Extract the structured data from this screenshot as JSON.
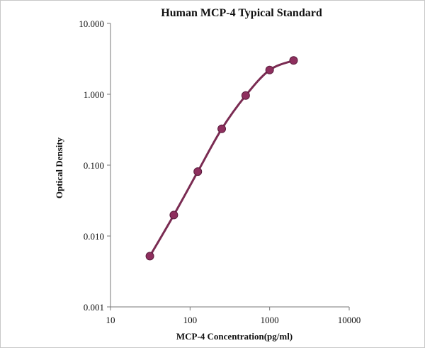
{
  "chart_data": {
    "type": "line",
    "title": "Human  MCP-4 Typical Standard",
    "xlabel": "MCP-4  Concentration(pg/ml)",
    "ylabel": "Optical Density",
    "x_scale": "log",
    "y_scale": "log",
    "xlim": [
      10,
      10000
    ],
    "ylim": [
      0.001,
      10
    ],
    "x_ticks": [
      "10",
      "100",
      "1000",
      "10000"
    ],
    "y_ticks": [
      "10.000",
      "1.000",
      "0.100",
      "0.010",
      "0.001"
    ],
    "grid": false,
    "legend": "none",
    "series": [
      {
        "color": "#7a2b52",
        "marker_color": "#8e2f5e",
        "x": [
          31.25,
          62.5,
          125,
          250,
          500,
          1000,
          2000
        ],
        "y": [
          0.0052,
          0.0198,
          0.081,
          0.325,
          0.96,
          2.2,
          3.0
        ]
      }
    ]
  }
}
